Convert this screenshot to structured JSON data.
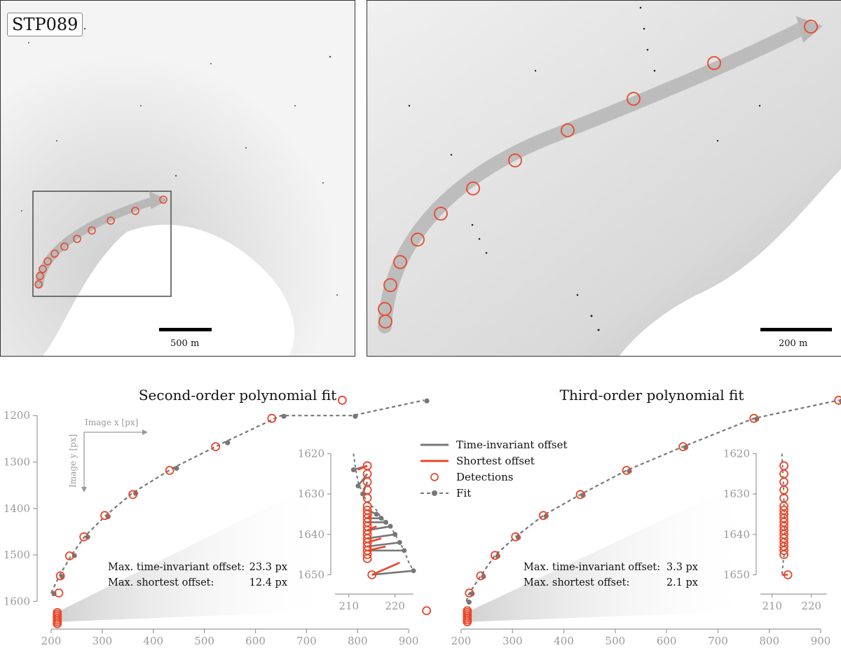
{
  "stp_label": "STP089",
  "scale_bar_left": "500 m",
  "scale_bar_right": "200 m",
  "colors": {
    "detection": "#e8472a",
    "fit": "#777777",
    "arrow": "#b8b8b8",
    "axis": "#9a9a9a",
    "frame": "#555555"
  },
  "legend": {
    "time_invariant": "Time-invariant offset",
    "shortest": "Shortest offset",
    "detections": "Detections",
    "fit": "Fit"
  },
  "axis_hint": {
    "x": "Image x [px]",
    "y": "Image y [px]"
  },
  "chart_data": [
    {
      "type": "scatter",
      "title": "Second-order polynomial fit",
      "x_ticks": [
        200,
        300,
        400,
        500,
        600,
        700,
        800,
        900
      ],
      "y_ticks": [
        1200,
        1300,
        1400,
        1500,
        1600
      ],
      "xlim": [
        200,
        930
      ],
      "ylim": [
        1165,
        1640
      ],
      "y_inverted": true,
      "annotation_lines": [
        "Max. time-invariant offset:",
        "Max. shortest offset:"
      ],
      "annotation_values": [
        "23.3 px",
        "12.4 px"
      ],
      "fit": {
        "x": [
          200,
          216,
          240,
          266,
          306,
          360,
          440,
          540,
          650,
          790,
          930
        ],
        "y": [
          1582,
          1545,
          1500,
          1460,
          1416,
          1366,
          1312,
          1257,
          1200,
          1200,
          1167
        ]
      },
      "detections": {
        "x": [
          215,
          218,
          236,
          264,
          305,
          360,
          432,
          522,
          632,
          770,
          935,
          212,
          212,
          212,
          212,
          212,
          212,
          212
        ],
        "y": [
          1582,
          1545,
          1502,
          1461,
          1415,
          1370,
          1318,
          1267,
          1206,
          1167,
          1620,
          1624,
          1628,
          1632,
          1636,
          1640,
          1644,
          1648
        ]
      },
      "inset": {
        "x_ticks": [
          210,
          220
        ],
        "y_ticks": [
          1620,
          1630,
          1640,
          1650
        ],
        "xlim": [
          207,
          224
        ],
        "ylim": [
          1618,
          1652
        ],
        "detections": {
          "x": [
            214,
            214,
            214,
            214,
            214,
            214,
            214,
            214,
            214,
            214,
            214,
            214,
            214,
            214,
            214,
            214,
            214,
            214,
            214,
            215
          ],
          "y": [
            1623,
            1625,
            1627,
            1629,
            1631,
            1633,
            1634,
            1635,
            1636,
            1637,
            1638,
            1639,
            1640,
            1641,
            1642,
            1643,
            1644,
            1645,
            1646,
            1650
          ]
        },
        "fit": {
          "x": [
            211,
            211.5,
            212,
            213,
            214,
            215,
            216,
            217,
            218,
            219,
            220,
            221,
            222,
            223,
            224
          ],
          "y": [
            1620,
            1624,
            1627,
            1630,
            1632,
            1633,
            1634,
            1636,
            1637,
            1638,
            1640,
            1642,
            1644,
            1647,
            1649
          ]
        },
        "time_invariant_pairs": [
          [
            214,
            1623,
            211,
            1624
          ],
          [
            214,
            1625,
            212,
            1628
          ],
          [
            214,
            1627,
            213,
            1630
          ],
          [
            214,
            1634,
            216,
            1635
          ],
          [
            214,
            1636,
            217,
            1636
          ],
          [
            214,
            1637,
            218,
            1637
          ],
          [
            214,
            1639,
            219,
            1638
          ],
          [
            214,
            1641,
            220,
            1640
          ],
          [
            214,
            1643,
            221,
            1642
          ],
          [
            214,
            1644,
            222,
            1644
          ],
          [
            215,
            1650,
            224,
            1649
          ]
        ],
        "shortest_pairs": [
          [
            214,
            1623,
            212,
            1624
          ],
          [
            214,
            1636,
            215,
            1635
          ],
          [
            214,
            1639,
            216,
            1638
          ],
          [
            214,
            1642,
            217,
            1641
          ],
          [
            214,
            1644,
            218,
            1643
          ],
          [
            215,
            1650,
            221,
            1647
          ]
        ]
      }
    },
    {
      "type": "scatter",
      "title": "Third-order polynomial fit",
      "x_ticks": [
        200,
        300,
        400,
        500,
        600,
        700,
        800,
        900
      ],
      "y_ticks": [],
      "xlim": [
        200,
        930
      ],
      "ylim": [
        1165,
        1640
      ],
      "y_inverted": true,
      "annotation_lines": [
        "Max. time-invariant offset:",
        "Max. shortest offset:"
      ],
      "annotation_values": [
        "3.3 px",
        "2.1 px"
      ],
      "fit": {
        "x": [
          210,
          216,
          238,
          266,
          306,
          360,
          432,
          522,
          632,
          770,
          935
        ],
        "y": [
          1600,
          1582,
          1545,
          1501,
          1461,
          1415,
          1370,
          1318,
          1267,
          1206,
          1167
        ]
      },
      "detections": {
        "x": [
          216,
          238,
          266,
          306,
          360,
          432,
          522,
          632,
          770,
          935,
          212,
          212,
          212,
          212,
          212,
          212,
          212
        ],
        "y": [
          1582,
          1545,
          1501,
          1461,
          1415,
          1370,
          1318,
          1267,
          1206,
          1167,
          1620,
          1624,
          1628,
          1632,
          1636,
          1640,
          1644
        ]
      },
      "inset": {
        "x_ticks": [
          210,
          220
        ],
        "y_ticks": [
          1620,
          1630,
          1640,
          1650
        ],
        "xlim": [
          207,
          224
        ],
        "ylim": [
          1618,
          1652
        ],
        "detections": {
          "x": [
            213,
            213,
            213,
            213,
            213,
            213,
            213,
            213,
            213,
            213,
            213,
            213,
            213,
            213,
            213,
            213,
            213,
            213,
            214
          ],
          "y": [
            1623,
            1625,
            1627,
            1629,
            1631,
            1633,
            1634,
            1635,
            1636,
            1637,
            1638,
            1639,
            1640,
            1641,
            1642,
            1643,
            1644,
            1645,
            1650
          ]
        },
        "fit": {
          "x": [
            212.5,
            212.7,
            212.9,
            213.0,
            213.1,
            213.2,
            213.2,
            212.8,
            212.5
          ],
          "y": [
            1620,
            1624,
            1628,
            1632,
            1636,
            1640,
            1644,
            1647,
            1650
          ]
        },
        "time_invariant_pairs": [],
        "shortest_pairs": [
          [
            214,
            1650,
            212.5,
            1650
          ]
        ]
      }
    }
  ]
}
